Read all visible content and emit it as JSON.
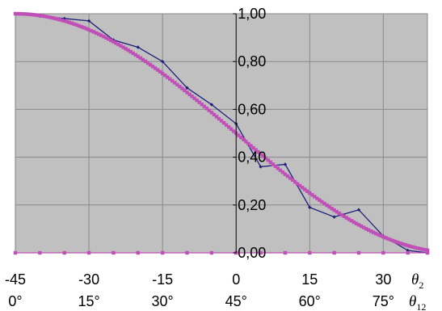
{
  "chart_data": {
    "type": "line",
    "x_axis_primary": {
      "variable": "θ",
      "subscript": "2",
      "ticks": [
        -45,
        -30,
        -15,
        0,
        15,
        30
      ],
      "tick_labels": [
        "-45",
        "-30",
        "-15",
        "0",
        "15",
        "30"
      ],
      "range": [
        -45,
        39
      ]
    },
    "x_axis_secondary": {
      "variable": "θ",
      "subscript": "12",
      "tick_labels": [
        "0°",
        "15°",
        "30°",
        "45°",
        "60°",
        "75°"
      ]
    },
    "y_axis": {
      "ticks": [
        0,
        0.2,
        0.4,
        0.6,
        0.8,
        1.0
      ],
      "tick_labels": [
        "0,00",
        "0,20",
        "0,40",
        "0,60",
        "0,80",
        "1,00"
      ],
      "range": [
        0,
        1
      ],
      "crosses_at_x": 0
    },
    "grid": true,
    "plot_background": "#c0c0c0",
    "series": [
      {
        "color": "#1f1f7a",
        "marker": "diamond",
        "x": [
          -45,
          -40,
          -35,
          -30,
          -25,
          -20,
          -15,
          -10,
          -5,
          0,
          5,
          10,
          15,
          20,
          25,
          30,
          35,
          39
        ],
        "y": [
          1.0,
          0.99,
          0.98,
          0.97,
          0.89,
          0.86,
          0.8,
          0.69,
          0.62,
          0.54,
          0.36,
          0.37,
          0.19,
          0.15,
          0.18,
          0.07,
          0.01,
          0.0
        ]
      },
      {
        "color": "#c050b8",
        "marker": "square",
        "curve": "cos2(theta2 + 45°)",
        "x_range": [
          -45,
          39
        ],
        "x_step": 0.5
      },
      {
        "color": "#c050b8",
        "marker": "square",
        "x": [
          -45,
          -40,
          -35,
          -30,
          -25,
          -20,
          -15,
          -10,
          -5,
          0,
          5,
          10,
          15,
          20,
          25,
          30,
          35,
          39
        ],
        "y": [
          0,
          0,
          0,
          0,
          0,
          0,
          0,
          0,
          0,
          0,
          0,
          0,
          0,
          0,
          0,
          0,
          0,
          0
        ]
      }
    ]
  }
}
